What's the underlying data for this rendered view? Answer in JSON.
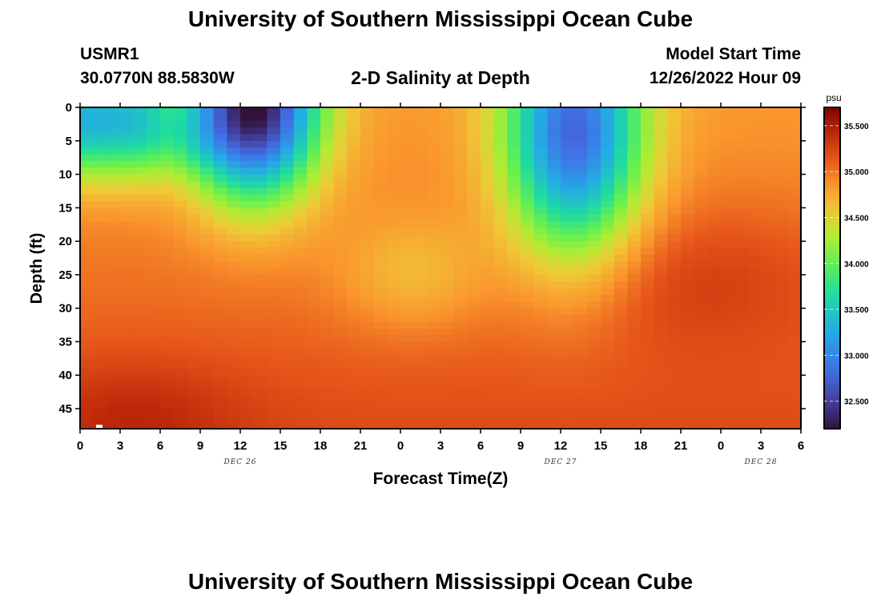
{
  "page": {
    "title": "University of Southern Mississippi Ocean Cube",
    "station": "USMR1",
    "coords": "30.0770N  88.5830W",
    "plot_title": "2-D Salinity at Depth",
    "model_start_label": "Model Start Time",
    "model_start_value": "12/26/2022 Hour 09",
    "bottom_title": "University of Southern Mississippi Ocean Cube"
  },
  "chart_data": {
    "type": "heatmap",
    "variable": "salinity",
    "xlabel": "Forecast Time(Z)",
    "ylabel": "Depth (ft)",
    "colorbar_unit": "psu",
    "x_hours": [
      0,
      3,
      6,
      9,
      12,
      15,
      18,
      21,
      24,
      27,
      30,
      33,
      36,
      39,
      42,
      45,
      48,
      51,
      54
    ],
    "x_tick_labels": [
      "0",
      "3",
      "6",
      "9",
      "12",
      "15",
      "18",
      "21",
      "0",
      "3",
      "6",
      "9",
      "12",
      "15",
      "18",
      "21",
      "0",
      "3",
      "6"
    ],
    "date_labels": [
      {
        "label": "DEC 26",
        "hour": 12
      },
      {
        "label": "DEC 27",
        "hour": 36
      },
      {
        "label": "DEC 28",
        "hour": 51
      }
    ],
    "xlim": [
      0,
      54
    ],
    "ylim": [
      0,
      48
    ],
    "y_tick_labels": [
      "0",
      "5",
      "10",
      "15",
      "20",
      "25",
      "30",
      "35",
      "40",
      "45"
    ],
    "y_ticks": [
      0,
      5,
      10,
      15,
      20,
      25,
      30,
      35,
      40,
      45
    ],
    "colorbar_range": [
      32.2,
      35.7
    ],
    "colorbar_ticks": [
      "32.500",
      "33.000",
      "33.500",
      "34.000",
      "34.500",
      "35.000",
      "35.500"
    ],
    "colorbar_tick_values": [
      32.5,
      33.0,
      33.5,
      34.0,
      34.5,
      35.0,
      35.5
    ],
    "grid_resolution": {
      "time_steps": 54,
      "depth_levels": 48
    },
    "features": [
      {
        "description": "fresh surface plume",
        "hour": 13,
        "depth": 0,
        "min_salinity": 32.2
      },
      {
        "description": "fresh surface plume",
        "hour": 37,
        "depth": 4,
        "min_salinity": 32.8
      },
      {
        "description": "saline bottom water",
        "depth": 45,
        "max_salinity": 35.6
      }
    ]
  }
}
